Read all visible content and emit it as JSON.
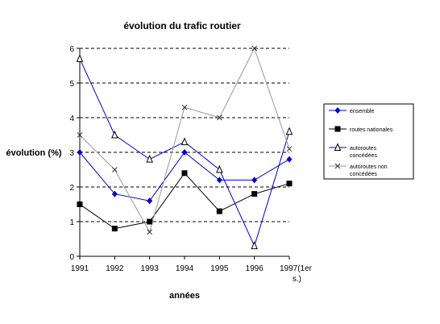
{
  "chart_data": {
    "type": "line",
    "title": "évolution du trafic routier",
    "xlabel": "années",
    "ylabel": "évolution (%)",
    "categories": [
      "1991",
      "1992",
      "1993",
      "1994",
      "1995",
      "1996",
      "1997(1er s.)"
    ],
    "ylim": [
      0,
      6
    ],
    "yticks": [
      0,
      1,
      2,
      3,
      4,
      5,
      6
    ],
    "grid": "horizontal-dashed",
    "legend_position": "right",
    "series": [
      {
        "name": "ensemble",
        "marker": "diamond",
        "color": "#0000cc",
        "marker_color": "#0000cc",
        "values": [
          3.0,
          1.8,
          1.6,
          3.0,
          2.2,
          2.2,
          2.8
        ]
      },
      {
        "name": "routes nationales",
        "marker": "square",
        "color": "#000000",
        "marker_color": "#000000",
        "values": [
          1.5,
          0.8,
          1.0,
          2.4,
          1.3,
          1.8,
          2.1
        ]
      },
      {
        "name": "autoroutes concédées",
        "marker": "triangle",
        "color": "#0000cc",
        "marker_color": "#000000",
        "values": [
          5.7,
          3.5,
          2.8,
          3.3,
          2.5,
          0.3,
          3.6
        ]
      },
      {
        "name": "autoroutes non concédées",
        "marker": "x",
        "color": "#999999",
        "marker_color": "#333333",
        "values": [
          3.5,
          2.5,
          0.7,
          4.3,
          4.0,
          6.0,
          3.1
        ]
      }
    ]
  }
}
